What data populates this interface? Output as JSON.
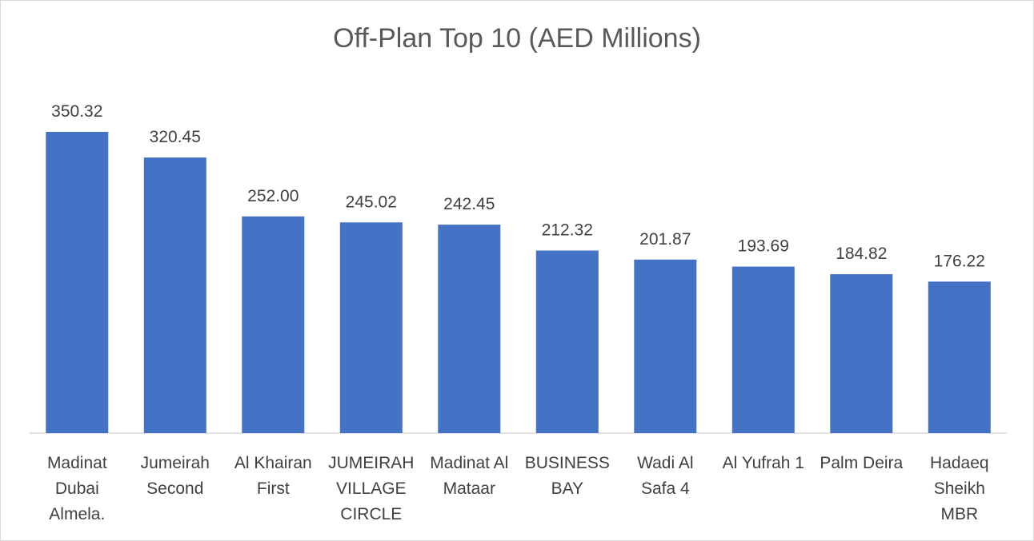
{
  "chart_data": {
    "type": "bar",
    "title": "Off-Plan Top 10 (AED Millions)",
    "xlabel": "",
    "ylabel": "",
    "categories": [
      [
        "Madinat",
        "Dubai",
        "Almela."
      ],
      [
        "Jumeirah",
        "Second"
      ],
      [
        "Al Khairan",
        "First"
      ],
      [
        "JUMEIRAH",
        "VILLAGE",
        "CIRCLE"
      ],
      [
        "Madinat Al",
        "Mataar"
      ],
      [
        "BUSINESS",
        "BAY"
      ],
      [
        "Wadi Al",
        "Safa 4"
      ],
      [
        "Al Yufrah 1"
      ],
      [
        "Palm Deira"
      ],
      [
        "Hadaeq",
        "Sheikh",
        "MBR"
      ]
    ],
    "values": [
      350.32,
      320.45,
      252.0,
      245.02,
      242.45,
      212.32,
      201.87,
      193.69,
      184.82,
      176.22
    ],
    "value_labels": [
      "350.32",
      "320.45",
      "252.00",
      "245.02",
      "242.45",
      "212.32",
      "201.87",
      "193.69",
      "184.82",
      "176.22"
    ],
    "ylim": [
      0,
      350.32
    ],
    "grid": false,
    "legend": "none",
    "bar_color": "#4472c4",
    "axis_color": "#d9d9d9"
  }
}
